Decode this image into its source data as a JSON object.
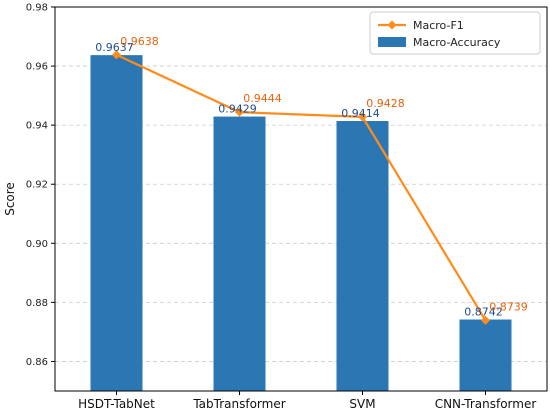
{
  "chart_data": {
    "type": "bar",
    "categories": [
      "HSDT-TabNet",
      "TabTransformer",
      "SVM",
      "CNN-Transformer"
    ],
    "series": [
      {
        "name": "Macro-Accuracy",
        "kind": "bar",
        "values": [
          0.9637,
          0.9429,
          0.9414,
          0.8742
        ],
        "value_labels": [
          "0.9637",
          "0.9429",
          "0.9414",
          "0.8742"
        ],
        "color": "#2a77b4",
        "label_color": "#1f4e8c"
      },
      {
        "name": "Macro-F1",
        "kind": "line",
        "marker": "diamond",
        "values": [
          0.9638,
          0.9444,
          0.9428,
          0.8739
        ],
        "value_labels": [
          "0.9638",
          "0.9444",
          "0.9428",
          "0.8739"
        ],
        "color": "#ff8c1a",
        "label_color": "#e8620c"
      }
    ],
    "ylabel": "Score",
    "ylim": [
      0.85,
      0.98
    ],
    "yticks": [
      0.86,
      0.88,
      0.9,
      0.92,
      0.94,
      0.96,
      0.98
    ],
    "ytick_labels": [
      "0.86",
      "0.88",
      "0.90",
      "0.92",
      "0.94",
      "0.96",
      "0.98"
    ],
    "grid": {
      "y": true,
      "style": "dashed"
    },
    "legend": {
      "placement": "top-right"
    }
  }
}
